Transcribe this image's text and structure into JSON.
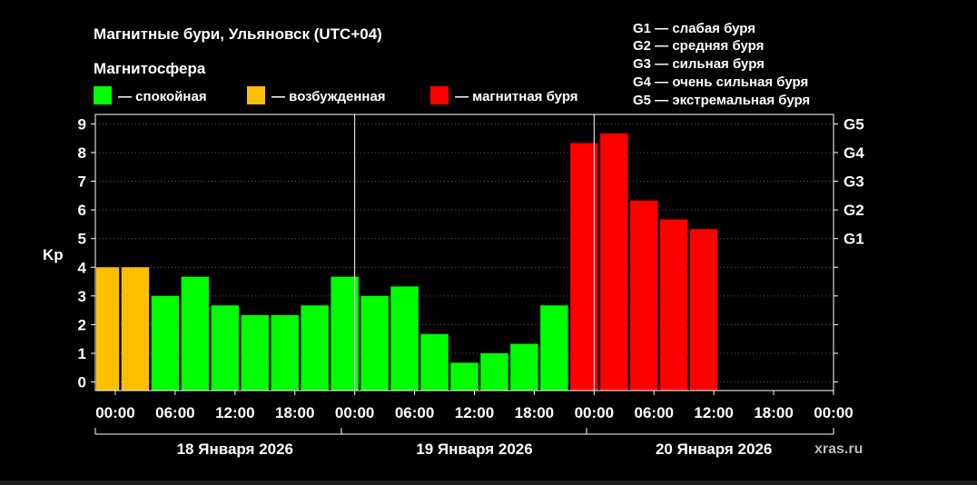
{
  "chart_data": {
    "type": "bar",
    "title": "Магнитные бури, Ульяновск (UTC+04)",
    "legend": {
      "title": "Магнитосфера",
      "items": [
        {
          "label": "— спокойная",
          "color": "#00ff00"
        },
        {
          "label": "— возбужденная",
          "color": "#ffbf00"
        },
        {
          "label": "— магнитная буря",
          "color": "#ff0000"
        }
      ],
      "placement": "top-left"
    },
    "g_scale": [
      "G1 — слабая буря",
      "G2 — средняя буря",
      "G3 — сильная буря",
      "G4 — очень сильная буря",
      "G5 — экстремальная буря"
    ],
    "ylabel": "Kp",
    "ylim": [
      -0.3,
      9.33
    ],
    "yticks": [
      "0",
      "1",
      "2",
      "3",
      "4",
      "5",
      "6",
      "7",
      "8",
      "9"
    ],
    "right_ticks": [
      {
        "label": "G1",
        "value": 5
      },
      {
        "label": "G2",
        "value": 6
      },
      {
        "label": "G3",
        "value": 7
      },
      {
        "label": "G4",
        "value": 8
      },
      {
        "label": "G5",
        "value": 9
      }
    ],
    "x_start_hour": -2,
    "x_end_hour": 72,
    "xticks": [
      "00:00",
      "06:00",
      "12:00",
      "18:00",
      "00:00",
      "06:00",
      "12:00",
      "18:00",
      "00:00",
      "06:00",
      "12:00",
      "18:00",
      "00:00"
    ],
    "xtick_hours": [
      0,
      6,
      12,
      18,
      24,
      30,
      36,
      42,
      48,
      54,
      60,
      66,
      72
    ],
    "day_dividers": [
      24,
      48
    ],
    "dates": [
      {
        "label": "18 Января 2026"
      },
      {
        "label": "19 Января 2026"
      },
      {
        "label": "20 Января 2026"
      }
    ],
    "colors": {
      "quiet": "#00ff00",
      "active": "#ffbf00",
      "storm": "#ff0000"
    },
    "bars": [
      {
        "hour": -1,
        "value": 4.0,
        "level": "active"
      },
      {
        "hour": 2,
        "value": 4.0,
        "level": "active"
      },
      {
        "hour": 5,
        "value": 3.0,
        "level": "quiet"
      },
      {
        "hour": 8,
        "value": 3.67,
        "level": "quiet"
      },
      {
        "hour": 11,
        "value": 2.67,
        "level": "quiet"
      },
      {
        "hour": 14,
        "value": 2.33,
        "level": "quiet"
      },
      {
        "hour": 17,
        "value": 2.33,
        "level": "quiet"
      },
      {
        "hour": 20,
        "value": 2.67,
        "level": "quiet"
      },
      {
        "hour": 23,
        "value": 3.67,
        "level": "quiet"
      },
      {
        "hour": 26,
        "value": 3.0,
        "level": "quiet"
      },
      {
        "hour": 29,
        "value": 3.33,
        "level": "quiet"
      },
      {
        "hour": 32,
        "value": 1.67,
        "level": "quiet"
      },
      {
        "hour": 35,
        "value": 0.67,
        "level": "quiet"
      },
      {
        "hour": 38,
        "value": 1.0,
        "level": "quiet"
      },
      {
        "hour": 41,
        "value": 1.33,
        "level": "quiet"
      },
      {
        "hour": 44,
        "value": 2.67,
        "level": "quiet"
      },
      {
        "hour": 47,
        "value": 8.33,
        "level": "storm"
      },
      {
        "hour": 50,
        "value": 8.67,
        "level": "storm"
      },
      {
        "hour": 53,
        "value": 6.33,
        "level": "storm"
      },
      {
        "hour": 56,
        "value": 5.67,
        "level": "storm"
      },
      {
        "hour": 59,
        "value": 5.33,
        "level": "storm"
      }
    ],
    "source": "xras.ru"
  }
}
